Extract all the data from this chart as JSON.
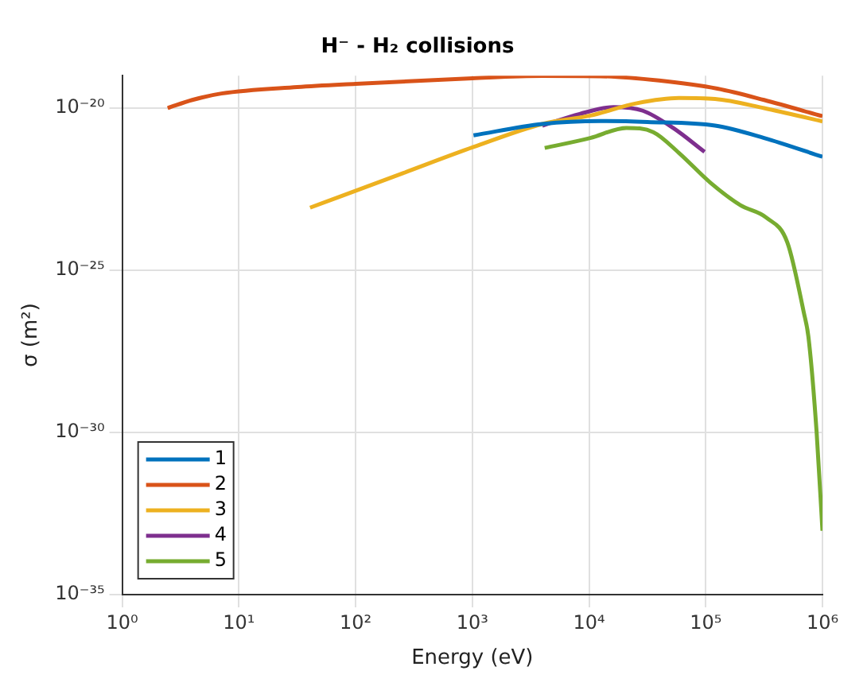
{
  "chart_data": {
    "type": "line",
    "title": "H⁻ - H₂ collisions",
    "xlabel": "Energy (eV)",
    "ylabel": "σ (m²)",
    "log": "xy",
    "grid": true,
    "legend": "bottom left",
    "marker": "none",
    "line_style": "solid",
    "xlim": [
      1,
      1000000
    ],
    "ylim": [
      1e-35,
      1e-19
    ],
    "xticks": [
      {
        "value": 1,
        "label": "10⁰"
      },
      {
        "value": 10,
        "label": "10¹"
      },
      {
        "value": 100,
        "label": "10²"
      },
      {
        "value": 1000,
        "label": "10³"
      },
      {
        "value": 10000,
        "label": "10⁴"
      },
      {
        "value": 100000,
        "label": "10⁵"
      },
      {
        "value": 1000000,
        "label": "10⁶"
      }
    ],
    "yticks": [
      {
        "value": 1e-35,
        "label": "10⁻³⁵"
      },
      {
        "value": 1e-30,
        "label": "10⁻³⁰"
      },
      {
        "value": 1e-25,
        "label": "10⁻²⁵"
      },
      {
        "value": 1e-20,
        "label": "10⁻²⁰"
      }
    ],
    "series": [
      {
        "name": "1",
        "color": "#0072bd",
        "x": [
          1023,
          3981,
          12589,
          31623,
          120226,
          316228,
          1000000
        ],
        "values": [
          1.45e-21,
          3.24e-21,
          3.98e-21,
          3.72e-21,
          2.88e-21,
          1.2e-21,
          3.16e-22
        ]
      },
      {
        "name": "2",
        "color": "#d95319",
        "x": [
          2.45,
          3.98,
          7.08,
          31.6,
          100,
          1000,
          3981,
          12589,
          39811,
          125893,
          316228,
          1000000
        ],
        "values": [
          1e-20,
          1.78e-20,
          2.82e-20,
          4.47e-20,
          5.62e-20,
          8.32e-20,
          9.8e-20,
          9.6e-20,
          7.08e-20,
          3.98e-20,
          1.78e-20,
          5.62e-21
        ]
      },
      {
        "name": "3",
        "color": "#edb120",
        "x": [
          40.7,
          257,
          1023,
          3981,
          10233,
          25704,
          58884,
          120226,
          316228,
          1000000
        ],
        "values": [
          8.51e-24,
          1e-22,
          6.31e-22,
          3.24e-21,
          5.89e-21,
          1.41e-20,
          2.04e-20,
          1.91e-20,
          1e-20,
          3.89e-21
        ]
      },
      {
        "name": "4",
        "color": "#7e2f8e",
        "x": [
          3981,
          8318,
          16218,
          28840,
          52481,
          97724
        ],
        "values": [
          2.88e-21,
          6.61e-21,
          1.07e-20,
          8.32e-21,
          2.45e-21,
          4.47e-22
        ]
      },
      {
        "name": "5",
        "color": "#77ac30",
        "x": [
          4169,
          10233,
          20893,
          35481,
          58884,
          109648,
          199526,
          331131,
          501187,
          691831,
          758578,
          891251,
          1000000
        ],
        "values": [
          5.89e-22,
          1.2e-21,
          2.45e-21,
          1.82e-21,
          4.17e-22,
          5.01e-23,
          1e-23,
          4.17e-24,
          7.08e-25,
          5.01e-27,
          8.71e-28,
          1.02e-30,
          9.33e-34
        ]
      }
    ]
  }
}
